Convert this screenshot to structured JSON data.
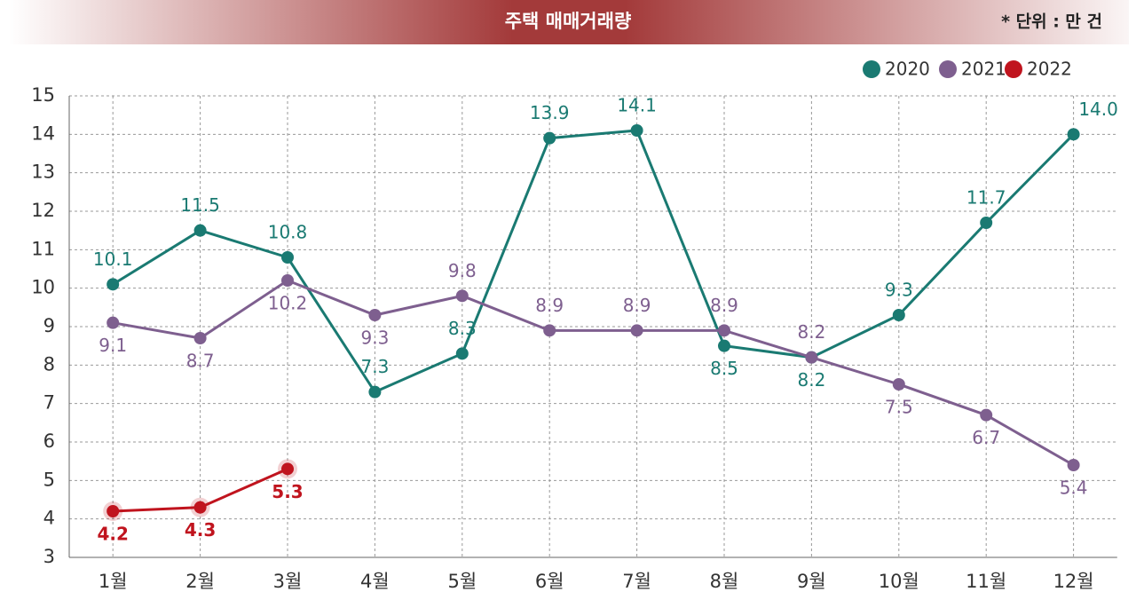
{
  "chart_data": {
    "type": "line",
    "title": "주택 매매거래량",
    "subtitle": "* 단위 : 만 건",
    "categories": [
      "1월",
      "2월",
      "3월",
      "4월",
      "5월",
      "6월",
      "7월",
      "8월",
      "9월",
      "10월",
      "11월",
      "12월"
    ],
    "series": [
      {
        "name": "2020",
        "color": "#1a7a72",
        "values": [
          10.1,
          11.5,
          10.8,
          7.3,
          8.3,
          13.9,
          14.1,
          8.5,
          8.2,
          9.3,
          11.7,
          14.0
        ],
        "value_labels": [
          "10.1",
          "11.5",
          "10.8",
          "7.3",
          "8.3",
          "13.9",
          "14.1",
          "8.5",
          "8.2",
          "9.3",
          "11.7",
          "14.0"
        ]
      },
      {
        "name": "2021",
        "color": "#7e5f8f",
        "values": [
          9.1,
          8.7,
          10.2,
          9.3,
          9.8,
          8.9,
          8.9,
          8.9,
          8.2,
          7.5,
          6.7,
          5.4
        ],
        "value_labels": [
          "9.1",
          "8.7",
          "10.2",
          "9.3",
          "9.8",
          "8.9",
          "8.9",
          "8.9",
          "8.2",
          "7.5",
          "6.7",
          "5.4"
        ]
      },
      {
        "name": "2022",
        "color": "#c0141e",
        "values": [
          4.2,
          4.3,
          5.3,
          null,
          null,
          null,
          null,
          null,
          null,
          null,
          null,
          null
        ],
        "value_labels": [
          "4.2",
          "4.3",
          "5.3",
          null,
          null,
          null,
          null,
          null,
          null,
          null,
          null,
          null
        ]
      }
    ],
    "ylim": [
      3,
      15
    ],
    "yticks": [
      3,
      4,
      5,
      6,
      7,
      8,
      9,
      10,
      11,
      12,
      13,
      14,
      15
    ],
    "grid": true,
    "legend": "top-right"
  }
}
